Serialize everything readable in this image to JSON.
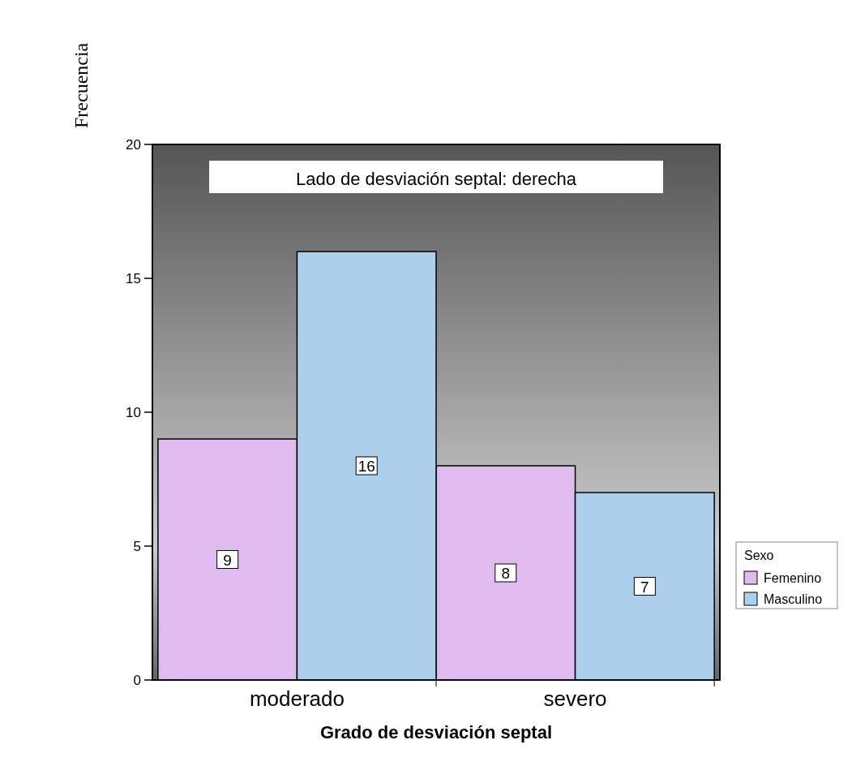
{
  "chart_data": {
    "type": "bar",
    "title": "Lado de desviación septal: derecha",
    "xlabel": "Grado de desviación septal",
    "ylabel": "Frecuencia",
    "legend_title": "Sexo",
    "categories": [
      "moderado",
      "severo"
    ],
    "series": [
      {
        "name": "Femenino",
        "color": "#e0bbf0",
        "values": [
          9,
          8
        ]
      },
      {
        "name": "Masculino",
        "color": "#acd0ec",
        "values": [
          16,
          7
        ]
      }
    ],
    "ylim": [
      0,
      20
    ],
    "yticks": [
      0,
      5,
      10,
      15,
      20
    ],
    "data_labels": true,
    "legend": "right",
    "grid": false
  }
}
